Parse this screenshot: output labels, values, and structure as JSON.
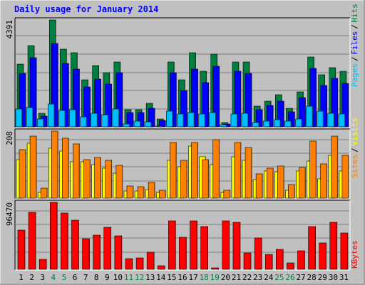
{
  "chart_data": [
    {
      "type": "bar",
      "title": "Daily usage for January 2014",
      "ymax_label": "4391",
      "ymax": 4391,
      "categories": [
        "1",
        "2",
        "3",
        "4",
        "5",
        "6",
        "7",
        "8",
        "9",
        "10",
        "11",
        "12",
        "13",
        "14",
        "15",
        "16",
        "17",
        "18",
        "19",
        "20",
        "21",
        "22",
        "23",
        "24",
        "25",
        "26",
        "27",
        "28",
        "29",
        "30",
        "31"
      ],
      "weekend_days": [
        "4",
        "5",
        "11",
        "12",
        "18",
        "19",
        "25",
        "26"
      ],
      "legend": [
        {
          "label": "Hits",
          "color": "#008040"
        },
        {
          "label": "Files",
          "color": "#0000FF"
        },
        {
          "label": "Pages",
          "color": "#00C0FF"
        }
      ],
      "separator": "/",
      "series": [
        {
          "name": "Hits",
          "color": "#008040",
          "values": [
            2588,
            3331,
            566,
            4391,
            3185,
            3042,
            1946,
            2530,
            2238,
            2675,
            691,
            691,
            968,
            314,
            2675,
            1946,
            3039,
            2269,
            2997,
            164,
            2675,
            2675,
            849,
            1052,
            1308,
            754,
            1427,
            2869,
            2136,
            2442,
            2269
          ]
        },
        {
          "name": "Files",
          "color": "#0000FF",
          "values": [
            2207,
            2849,
            450,
            3419,
            2602,
            2381,
            1649,
            1974,
            1767,
            2213,
            591,
            591,
            751,
            251,
            2235,
            1505,
            2366,
            1815,
            2498,
            120,
            2285,
            2209,
            692,
            873,
            1040,
            617,
            1197,
            2395,
            1690,
            1988,
            1793
          ]
        },
        {
          "name": "Pages",
          "color": "#00C0FF",
          "values": [
            720,
            780,
            310,
            950,
            660,
            700,
            420,
            570,
            510,
            720,
            130,
            240,
            210,
            30,
            630,
            530,
            600,
            520,
            580,
            90,
            540,
            560,
            190,
            230,
            290,
            220,
            330,
            860,
            630,
            570,
            520
          ]
        }
      ]
    },
    {
      "type": "bar",
      "ymax_label": "208",
      "ymax": 208,
      "legend": [
        {
          "label": "Visits",
          "color": "#FFFF00"
        },
        {
          "label": "Sites",
          "color": "#FF8000"
        }
      ],
      "separator": "/",
      "series": [
        {
          "name": "Visits",
          "color": "#FFFF00",
          "values": [
            120,
            170,
            18,
            155,
            145,
            112,
            112,
            105,
            92,
            77,
            22,
            22,
            27,
            18,
            118,
            98,
            162,
            128,
            105,
            18,
            128,
            118,
            58,
            84,
            82,
            24,
            85,
            115,
            60,
            132,
            85
          ]
        },
        {
          "name": "Sites",
          "color": "#FF8000",
          "values": [
            150,
            192,
            32,
            208,
            185,
            168,
            120,
            126,
            117,
            101,
            37,
            36,
            48,
            25,
            172,
            118,
            172,
            120,
            182,
            24,
            173,
            157,
            76,
            94,
            100,
            41,
            95,
            178,
            107,
            192,
            132
          ]
        }
      ]
    },
    {
      "type": "bar",
      "ymax_label": "96470",
      "ymax": 96470,
      "legend": [
        {
          "label": "KBytes",
          "color": "#FF0000"
        }
      ],
      "series": [
        {
          "name": "KBytes",
          "color": "#FF0000",
          "values": [
            56000,
            82000,
            14000,
            96470,
            81000,
            71000,
            44000,
            49000,
            61000,
            48000,
            15000,
            16000,
            25000,
            5000,
            70000,
            46000,
            70000,
            62000,
            2000,
            70000,
            68000,
            24000,
            45000,
            22000,
            29000,
            9000,
            27000,
            62000,
            38000,
            68000,
            52000
          ]
        }
      ]
    }
  ]
}
